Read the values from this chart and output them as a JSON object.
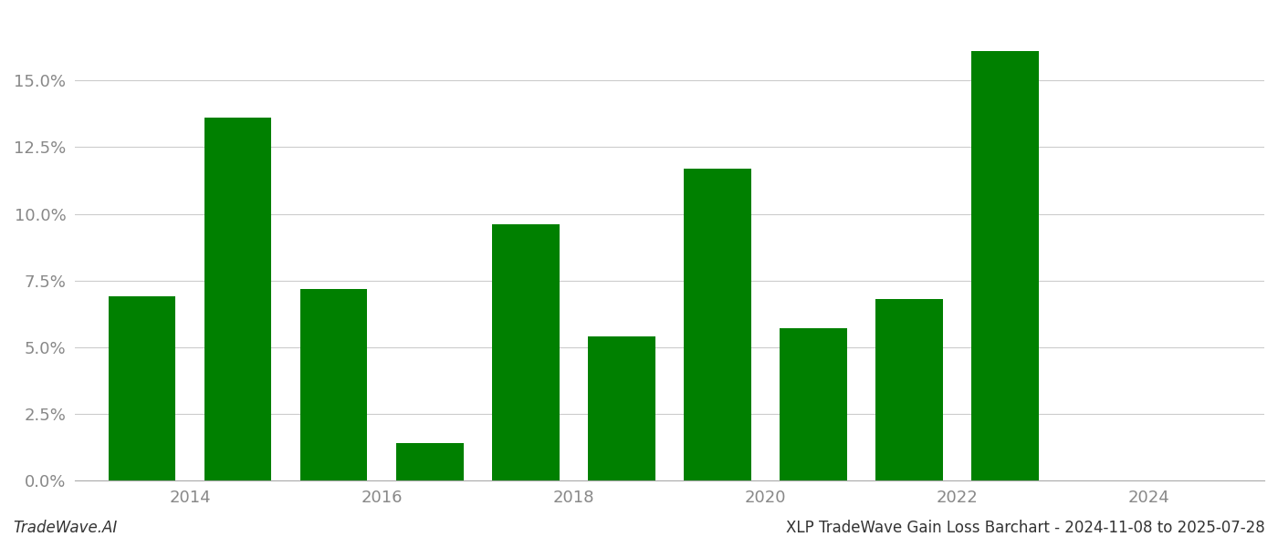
{
  "bar_positions": [
    2013.5,
    2014.5,
    2015.5,
    2016.5,
    2017.5,
    2018.5,
    2019.5,
    2020.5,
    2021.5,
    2022.5
  ],
  "values": [
    0.069,
    0.136,
    0.072,
    0.014,
    0.096,
    0.054,
    0.117,
    0.057,
    0.068,
    0.161
  ],
  "bar_color": "#008000",
  "background_color": "#ffffff",
  "grid_color": "#cccccc",
  "ylim": [
    0,
    0.175
  ],
  "yticks": [
    0.0,
    0.025,
    0.05,
    0.075,
    0.1,
    0.125,
    0.15
  ],
  "xtick_positions": [
    2014,
    2016,
    2018,
    2020,
    2022,
    2024
  ],
  "xtick_labels": [
    "2014",
    "2016",
    "2018",
    "2020",
    "2022",
    "2024"
  ],
  "xlim": [
    2012.8,
    2025.2
  ],
  "footer_left": "TradeWave.AI",
  "footer_right": "XLP TradeWave Gain Loss Barchart - 2024-11-08 to 2025-07-28",
  "figsize": [
    14.0,
    6.0
  ],
  "dpi": 100,
  "bar_width": 0.7
}
